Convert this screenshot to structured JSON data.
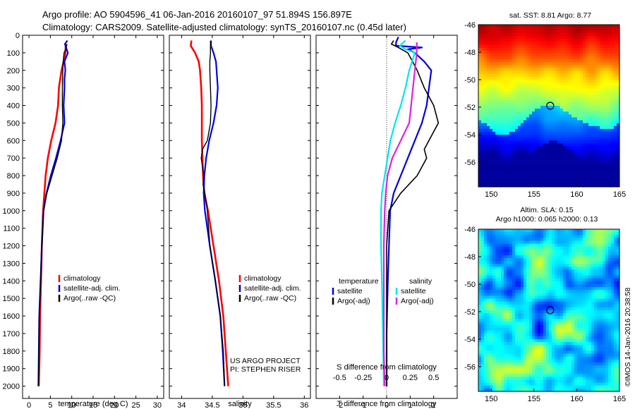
{
  "header": {
    "line1": "Argo profile: AO 5904596_41 06-Jan-2016 20160107_97 51.894S 156.897E",
    "line2": "Climatology: CARS2009. Satellite-adjusted climatology: synTS_20160107.nc (0.45d later)"
  },
  "credits": {
    "project": "US ARGO PROJECT",
    "pi": "PI: STEPHEN RISER",
    "imos": "©IMOS 14-Jan-2016 20:38:58"
  },
  "colors": {
    "climatology": "#ff0000",
    "satellite": "#0000dd",
    "argo": "#000000",
    "sal_satellite": "#00e5ee",
    "sal_argo": "#dd22dd"
  },
  "chart_data": [
    {
      "type": "line",
      "id": "temperature",
      "xlabel": "temperature (deg C)",
      "ylabel": "",
      "xlim": [
        -1.5,
        31.5
      ],
      "ylim": [
        2070,
        0
      ],
      "xticks": [
        0,
        5,
        10,
        15,
        20,
        25,
        30
      ],
      "yticks": [
        0,
        100,
        200,
        300,
        400,
        500,
        600,
        700,
        800,
        900,
        1000,
        1100,
        1200,
        1300,
        1400,
        1500,
        1600,
        1700,
        1800,
        1900,
        2000
      ],
      "legend": [
        "climatology",
        "satellite-adj. clim.",
        "Argo(..raw -QC)"
      ],
      "series": [
        {
          "name": "climatology",
          "x": [
            8.6,
            8.5,
            8.1,
            7.6,
            7.3,
            7.0,
            6.8,
            6.2,
            5.2,
            4.4,
            3.9,
            3.6,
            3.3,
            3.0,
            2.8,
            2.6,
            2.5,
            2.3
          ],
          "y": [
            50,
            100,
            150,
            200,
            250,
            300,
            400,
            500,
            600,
            700,
            800,
            900,
            1000,
            1200,
            1400,
            1600,
            1800,
            2000
          ]
        },
        {
          "name": "satellite-adj. clim.",
          "x": [
            9.0,
            8.4,
            9.1,
            8.3,
            8.5,
            8.3,
            8.3,
            8.1,
            8.3,
            7.4,
            6.3,
            5.1,
            4.1,
            3.4,
            3.0,
            2.7,
            2.4,
            2.2
          ],
          "y": [
            30,
            50,
            100,
            150,
            200,
            250,
            300,
            400,
            500,
            600,
            700,
            800,
            900,
            1000,
            1200,
            1400,
            1600,
            2000
          ]
        },
        {
          "name": "Argo(..raw -QC)",
          "x": [
            8.9,
            8.6,
            8.2,
            8.0,
            7.9,
            7.8,
            7.8,
            7.9,
            7.6,
            6.6,
            5.4,
            4.2,
            3.4,
            3.0,
            2.7,
            2.4,
            2.2
          ],
          "y": [
            50,
            80,
            100,
            150,
            200,
            300,
            400,
            500,
            600,
            700,
            800,
            900,
            1000,
            1200,
            1400,
            1600,
            2000
          ]
        }
      ]
    },
    {
      "type": "line",
      "id": "salinity",
      "xlabel": "salinity",
      "ylabel": "",
      "xlim": [
        33.8,
        36.1
      ],
      "ylim": [
        2070,
        0
      ],
      "xticks": [
        34,
        34.5,
        35,
        35.5,
        36
      ],
      "legend": [
        "climatology",
        "satellite-adj. clim.",
        "Argo(..raw -QC)"
      ],
      "series": [
        {
          "name": "climatology",
          "x": [
            34.16,
            34.15,
            34.22,
            34.28,
            34.3,
            34.32,
            34.33,
            34.33,
            34.33,
            34.34,
            34.35,
            34.37,
            34.43,
            34.52,
            34.61,
            34.68,
            34.72,
            34.76
          ],
          "y": [
            30,
            60,
            100,
            150,
            200,
            300,
            400,
            500,
            600,
            700,
            800,
            900,
            1000,
            1200,
            1400,
            1600,
            1800,
            2000
          ]
        },
        {
          "name": "satellite-adj. clim.",
          "x": [
            34.48,
            34.48,
            34.52,
            34.56,
            34.57,
            34.59,
            34.57,
            34.52,
            34.45,
            34.4,
            34.37,
            34.36,
            34.38,
            34.46,
            34.55,
            34.63,
            34.67,
            34.7
          ],
          "y": [
            30,
            60,
            100,
            150,
            200,
            300,
            400,
            500,
            600,
            700,
            800,
            900,
            1000,
            1200,
            1400,
            1600,
            1800,
            2000
          ]
        },
        {
          "name": "Argo(..raw -QC)",
          "x": [
            34.47,
            34.47,
            34.47,
            34.46,
            34.46,
            34.47,
            34.48,
            34.47,
            34.42,
            34.34,
            34.32,
            34.36,
            34.35,
            34.38,
            34.42,
            34.46,
            34.55,
            34.63,
            34.68,
            34.7
          ],
          "y": [
            30,
            60,
            100,
            150,
            200,
            300,
            400,
            500,
            600,
            650,
            700,
            800,
            850,
            900,
            1000,
            1200,
            1400,
            1600,
            1800,
            2000
          ]
        }
      ]
    },
    {
      "type": "line",
      "id": "difference",
      "xlabel": "T difference from climatology",
      "top_label": "S difference from climatology",
      "xlim": [
        -3.0,
        3.0
      ],
      "ylim": [
        2070,
        0
      ],
      "xticks": [
        -2,
        -1,
        0,
        1,
        2
      ],
      "top_ticks": [
        -0.5,
        -0.25,
        0,
        0.25,
        0.5
      ],
      "legend_groups": [
        {
          "title": "temperature",
          "entries": [
            "satellite",
            "Argo(-adj)"
          ]
        },
        {
          "title": "salinity",
          "entries": [
            "satellite",
            "Argo(-adj)"
          ]
        }
      ],
      "series": [
        {
          "name": "temperature satellite",
          "x": [
            0.5,
            0.4,
            0.4,
            1.5,
            0.9,
            1.2,
            1.6,
            1.9,
            1.8,
            1.7,
            1.5,
            1.2,
            0.9,
            0.6,
            0.3,
            0.15,
            0.1,
            0.05,
            0.0,
            0.0
          ],
          "y": [
            10,
            40,
            60,
            70,
            80,
            100,
            150,
            200,
            300,
            400,
            500,
            600,
            700,
            800,
            900,
            1000,
            1200,
            1400,
            1700,
            2000
          ]
        },
        {
          "name": "temperature Argo(-adj)",
          "x": [
            0.3,
            0.2,
            0.5,
            0.9,
            1.1,
            1.3,
            1.6,
            2.0,
            2.2,
            1.8,
            1.6,
            1.7,
            1.3,
            0.6,
            0.1,
            0.0,
            0.0,
            0.0,
            0.0
          ],
          "y": [
            30,
            50,
            70,
            100,
            150,
            200,
            300,
            400,
            500,
            600,
            650,
            700,
            800,
            900,
            1000,
            1200,
            1400,
            1700,
            2000
          ]
        },
        {
          "name": "salinity satellite",
          "x": [
            0.2,
            0.14,
            0.2,
            0.3,
            0.27,
            0.24,
            0.2,
            0.15,
            0.09,
            0.04,
            0.01,
            -0.02,
            -0.05,
            -0.06,
            -0.06,
            -0.05,
            -0.04,
            -0.03
          ],
          "y": [
            30,
            60,
            80,
            100,
            150,
            200,
            300,
            400,
            500,
            600,
            700,
            800,
            900,
            1000,
            1200,
            1400,
            1700,
            2000
          ]
        },
        {
          "name": "salinity Argo(-adj)",
          "x": [
            0.32,
            0.32,
            0.32,
            0.3,
            0.28,
            0.26,
            0.24,
            0.15,
            0.06,
            0.01,
            -0.01,
            -0.02,
            -0.03,
            -0.03,
            -0.03,
            -0.03,
            -0.02
          ],
          "y": [
            40,
            60,
            100,
            200,
            300,
            400,
            500,
            600,
            700,
            800,
            900,
            1000,
            1200,
            1400,
            1600,
            1800,
            2000
          ]
        }
      ]
    },
    {
      "type": "heatmap",
      "id": "sst_map",
      "title": "sat. SST: 8.81 Argo: 8.77",
      "xlim": [
        148.5,
        165
      ],
      "ylim": [
        -57.8,
        -46
      ],
      "xticks": [
        150,
        155,
        160,
        165
      ],
      "yticks": [
        -46,
        -48,
        -50,
        -52,
        -54,
        -56
      ],
      "profile_marker": {
        "lon": 156.9,
        "lat": -51.9
      }
    },
    {
      "type": "heatmap",
      "id": "sla_map",
      "title_line1": "Altim. SLA: 0.15",
      "title_line2": "Argo h1000: 0.065 h2000: 0.13",
      "xlim": [
        148.5,
        165
      ],
      "ylim": [
        -57.8,
        -46
      ],
      "xticks": [
        150,
        155,
        160,
        165
      ],
      "yticks": [
        -46,
        -48,
        -50,
        -52,
        -54,
        -56
      ],
      "profile_marker": {
        "lon": 156.9,
        "lat": -51.9
      }
    }
  ]
}
